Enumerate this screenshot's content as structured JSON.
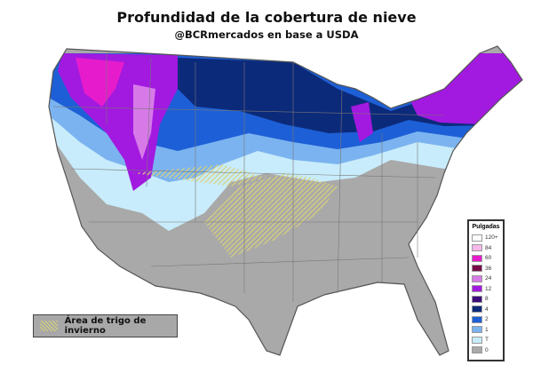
{
  "header": {
    "title": "Profundidad de la cobertura de nieve",
    "subtitle": "@BCRmercados en base a USDA"
  },
  "legend": {
    "title": "Pulgadas",
    "items": [
      {
        "label": "120+",
        "color": "#ffffff"
      },
      {
        "label": "84",
        "color": "#f7b8ea"
      },
      {
        "label": "60",
        "color": "#e61ccc"
      },
      {
        "label": "36",
        "color": "#7a0a4a"
      },
      {
        "label": "24",
        "color": "#d77ae8"
      },
      {
        "label": "12",
        "color": "#a219e0"
      },
      {
        "label": "8",
        "color": "#3d0a7a"
      },
      {
        "label": "4",
        "color": "#0c2a7a"
      },
      {
        "label": "2",
        "color": "#1d5fd6"
      },
      {
        "label": "1",
        "color": "#7bb3f0"
      },
      {
        "label": "T",
        "color": "#c8ecfb"
      },
      {
        "label": "0",
        "color": "#a9a9a9"
      }
    ]
  },
  "wheat_legend": {
    "label": "Área de trigo de invierno",
    "pattern_color": "#d9d27a"
  }
}
